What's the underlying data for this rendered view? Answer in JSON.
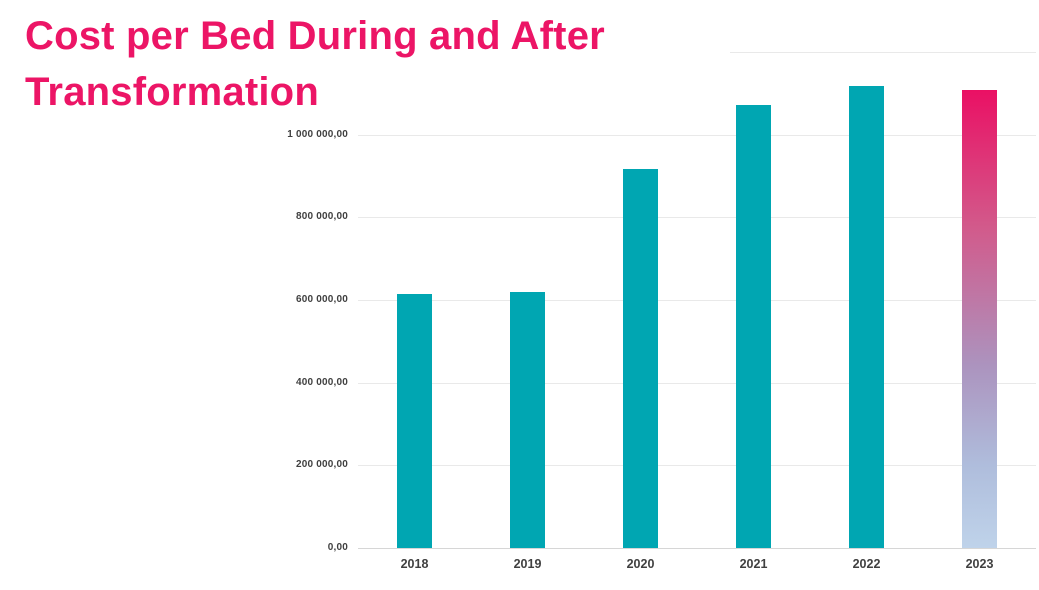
{
  "slide": {
    "title_lines": [
      "Cost per Bed During and After",
      "Transformation"
    ],
    "title_color": "#ec1566",
    "background_color": "#ffffff"
  },
  "chart_data": {
    "type": "bar",
    "title": "Cost per Bed During and After Transformation",
    "categories": [
      "2018",
      "2019",
      "2020",
      "2021",
      "2022",
      "2023"
    ],
    "values": [
      614000,
      620000,
      917000,
      1073000,
      1117000,
      1108000
    ],
    "xlabel": "",
    "ylabel": "",
    "ylim": [
      0,
      1200000
    ],
    "y_tick_step": 200000,
    "y_tick_labels": [
      "0,00",
      "200 000,00",
      "400 000,00",
      "600 000,00",
      "800 000,00",
      "1 000 000,00"
    ],
    "grid": "horizontal",
    "legend": "none",
    "bar_color": "#00a6b2",
    "gridline_color": "#e9e9e9",
    "axis_line_color": "#d6d6d6",
    "tick_label_color": "#404040",
    "highlight": {
      "index": 5,
      "category": "2023",
      "gradient": [
        "#ea1064",
        "#d25a8b",
        "#ac93be",
        "#afbddc",
        "#bfd3ea"
      ]
    }
  }
}
